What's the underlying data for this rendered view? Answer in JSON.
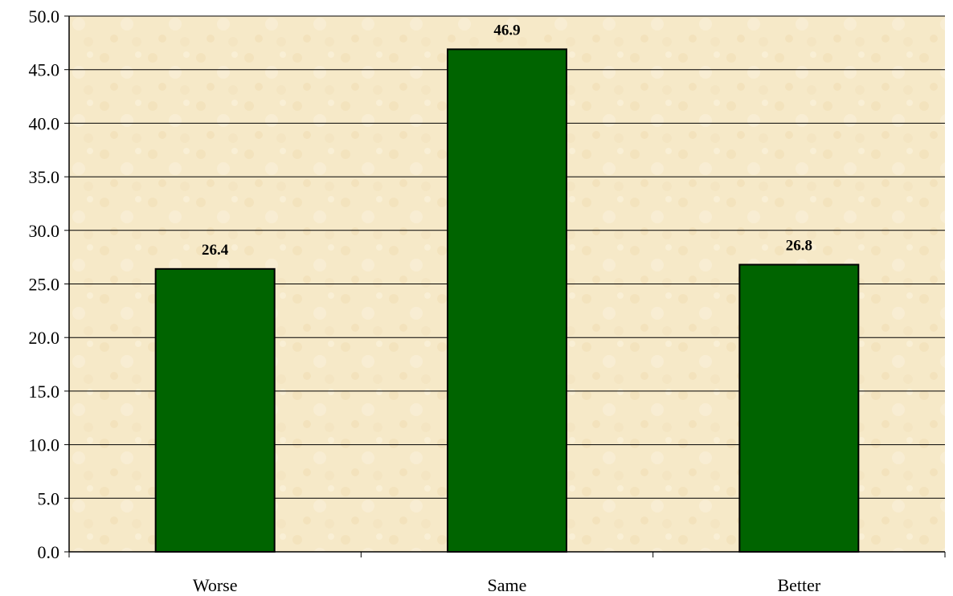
{
  "chart_data": {
    "type": "bar",
    "title": "",
    "xlabel": "",
    "ylabel": "",
    "categories": [
      "Worse",
      "Same",
      "Better"
    ],
    "values": [
      26.4,
      46.9,
      26.8
    ],
    "data_labels": [
      "26.4",
      "46.9",
      "26.8"
    ],
    "ylim": [
      0,
      50
    ],
    "y_ticks": [
      "0.0",
      "5.0",
      "10.0",
      "15.0",
      "20.0",
      "25.0",
      "30.0",
      "35.0",
      "40.0",
      "45.0",
      "50.0"
    ],
    "grid": true,
    "legend": "none",
    "colors": {
      "bar_fill": "#006400",
      "bar_stroke": "#000000",
      "plot_background": "#f6e9c8",
      "gridline": "#000000"
    }
  }
}
